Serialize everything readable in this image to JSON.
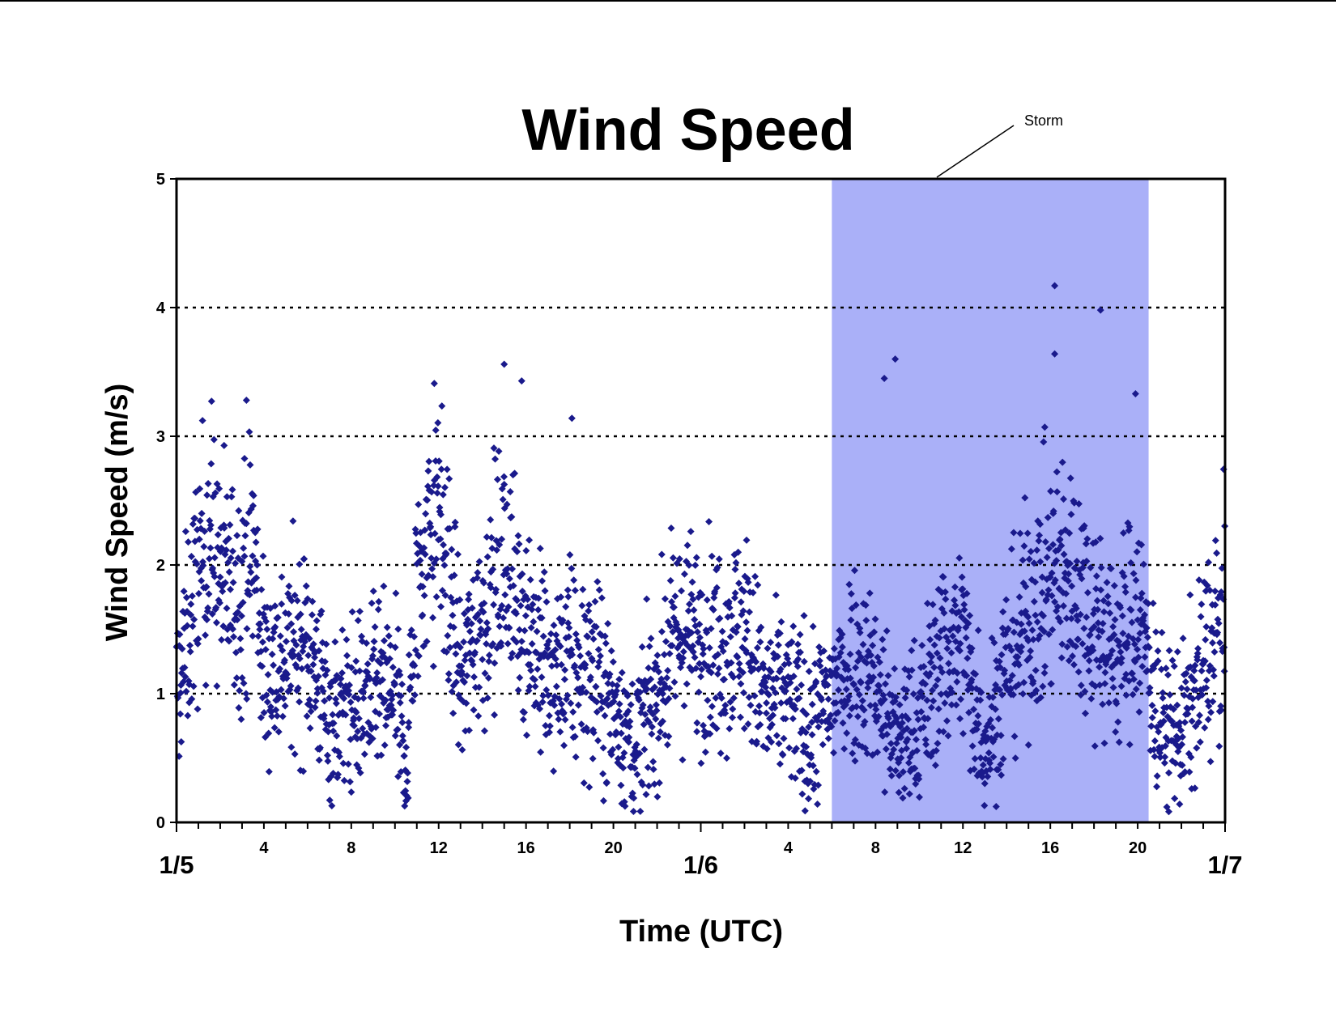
{
  "chart_data": {
    "type": "scatter",
    "title": "Wind Speed",
    "xlabel": "Time (UTC)",
    "ylabel": "Wind Speed (m/s)",
    "ylim": [
      0,
      5
    ],
    "yticks": [
      "0",
      "1",
      "2",
      "3",
      "4",
      "5"
    ],
    "xlim": [
      "1/5 00:00",
      "1/7 00:00"
    ],
    "x_hour_ticks": [
      {
        "hour": 4,
        "label": "4"
      },
      {
        "hour": 8,
        "label": "8"
      },
      {
        "hour": 12,
        "label": "12"
      },
      {
        "hour": 16,
        "label": "16"
      },
      {
        "hour": 20,
        "label": "20"
      },
      {
        "hour": 28,
        "label": "4"
      },
      {
        "hour": 32,
        "label": "8"
      },
      {
        "hour": 36,
        "label": "12"
      },
      {
        "hour": 40,
        "label": "16"
      },
      {
        "hour": 44,
        "label": "20"
      }
    ],
    "x_date_ticks": [
      {
        "hour": 0,
        "label": "1/5"
      },
      {
        "hour": 24,
        "label": "1/6"
      },
      {
        "hour": 48,
        "label": "1/7"
      }
    ],
    "gridlines": [
      1,
      2,
      3,
      4
    ],
    "grid": "horizontal dotted",
    "marker": "diamond",
    "marker_color": "#1a1a8c",
    "shaded_region": {
      "label": "Storm",
      "start": "1/6 06:00",
      "end": "1/6 20:30",
      "color": "#aab0f8"
    },
    "series_profile": {
      "description_points_hour_vs_mean_speed": [
        [
          0,
          1.0
        ],
        [
          1,
          1.9
        ],
        [
          1.5,
          2.3
        ],
        [
          2,
          1.9
        ],
        [
          3,
          1.8
        ],
        [
          3.5,
          2.2
        ],
        [
          4,
          1.2
        ],
        [
          5,
          1.3
        ],
        [
          6,
          1.4
        ],
        [
          7,
          0.8
        ],
        [
          8,
          0.9
        ],
        [
          9,
          1.0
        ],
        [
          10,
          1.0
        ],
        [
          10.5,
          0.4
        ],
        [
          11,
          1.8
        ],
        [
          12,
          2.5
        ],
        [
          13,
          1.1
        ],
        [
          14,
          1.6
        ],
        [
          15,
          2.0
        ],
        [
          16,
          1.6
        ],
        [
          17,
          1.1
        ],
        [
          18,
          1.2
        ],
        [
          19,
          1.2
        ],
        [
          20,
          0.9
        ],
        [
          21,
          0.6
        ],
        [
          22,
          1.0
        ],
        [
          23,
          1.5
        ],
        [
          24,
          1.4
        ],
        [
          25,
          1.4
        ],
        [
          26,
          1.5
        ],
        [
          27,
          0.9
        ],
        [
          28,
          1.0
        ],
        [
          29,
          0.7
        ],
        [
          30,
          1.0
        ],
        [
          31,
          1.3
        ],
        [
          32,
          1.1
        ],
        [
          33,
          0.6
        ],
        [
          34,
          0.8
        ],
        [
          35,
          1.3
        ],
        [
          36,
          1.4
        ],
        [
          37,
          0.6
        ],
        [
          38,
          1.2
        ],
        [
          39,
          1.6
        ],
        [
          40,
          1.9
        ],
        [
          41,
          1.9
        ],
        [
          42,
          1.6
        ],
        [
          43,
          1.3
        ],
        [
          44,
          1.7
        ],
        [
          45,
          0.8
        ],
        [
          46,
          0.7
        ],
        [
          47,
          1.2
        ],
        [
          48,
          1.6
        ]
      ],
      "noted_peaks": [
        {
          "hour": 3.2,
          "value": 3.28
        },
        {
          "hour": 11.8,
          "value": 3.41
        },
        {
          "hour": 15.0,
          "value": 3.56
        },
        {
          "hour": 15.8,
          "value": 3.43
        },
        {
          "hour": 18.1,
          "value": 3.14
        },
        {
          "hour": 32.4,
          "value": 3.45
        },
        {
          "hour": 32.9,
          "value": 3.6
        },
        {
          "hour": 40.2,
          "value": 4.17
        },
        {
          "hour": 40.2,
          "value": 3.64
        },
        {
          "hour": 42.3,
          "value": 3.98
        },
        {
          "hour": 43.9,
          "value": 3.33
        }
      ]
    }
  }
}
